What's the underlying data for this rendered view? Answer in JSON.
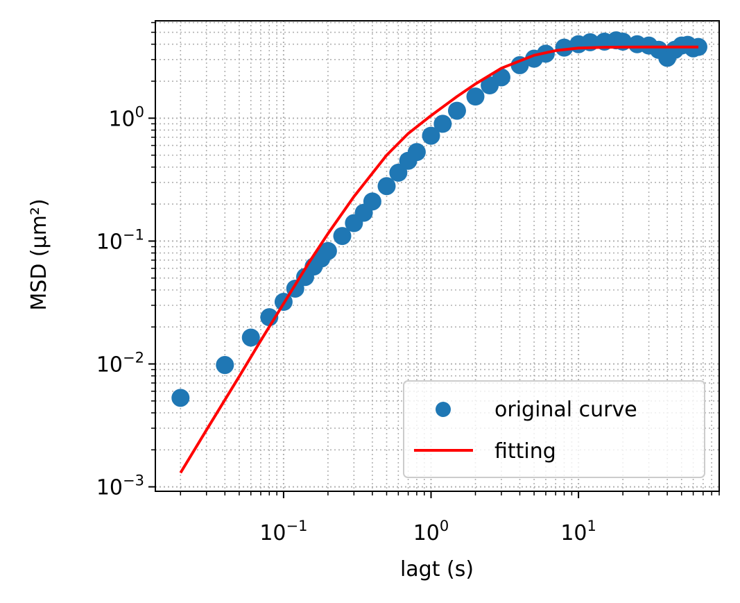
{
  "chart_data": {
    "type": "scatter",
    "xlabel": "lagt (s)",
    "ylabel": "MSD (μm²)",
    "xscale": "log",
    "yscale": "log",
    "xlim": [
      0.0135,
      90
    ],
    "ylim": [
      0.00092,
      6.2
    ],
    "grid": true,
    "grid_style": "dotted, major and minor",
    "legend_position": "bottom-right",
    "xticks": [
      {
        "value": 0.1,
        "base": "10",
        "exp": "−1"
      },
      {
        "value": 1,
        "base": "10",
        "exp": "0"
      },
      {
        "value": 10,
        "base": "10",
        "exp": "1"
      }
    ],
    "yticks": [
      {
        "value": 0.001,
        "base": "10",
        "exp": "−3"
      },
      {
        "value": 0.01,
        "base": "10",
        "exp": "−2"
      },
      {
        "value": 0.1,
        "base": "10",
        "exp": "−1"
      },
      {
        "value": 1,
        "base": "10",
        "exp": "0"
      }
    ],
    "series": [
      {
        "name": "original curve",
        "kind": "scatter",
        "color": "#1f77b4",
        "x": [
          0.02,
          0.04,
          0.06,
          0.08,
          0.1,
          0.12,
          0.14,
          0.16,
          0.18,
          0.2,
          0.25,
          0.3,
          0.35,
          0.4,
          0.5,
          0.6,
          0.7,
          0.8,
          1.0,
          1.2,
          1.5,
          2.0,
          2.5,
          3.0,
          4.0,
          5.0,
          6.0,
          8.0,
          10,
          12,
          15,
          18,
          20,
          25,
          30,
          35,
          40,
          45,
          50,
          55,
          60,
          65
        ],
        "y": [
          0.0053,
          0.0098,
          0.0164,
          0.024,
          0.032,
          0.041,
          0.051,
          0.062,
          0.072,
          0.083,
          0.11,
          0.14,
          0.17,
          0.21,
          0.28,
          0.36,
          0.45,
          0.53,
          0.72,
          0.9,
          1.15,
          1.5,
          1.85,
          2.15,
          2.7,
          3.05,
          3.35,
          3.75,
          4.0,
          4.15,
          4.2,
          4.3,
          4.2,
          4.0,
          3.9,
          3.6,
          3.1,
          3.6,
          3.9,
          3.95,
          3.7,
          3.8
        ]
      },
      {
        "name": "fitting",
        "kind": "line",
        "color": "#ff0000",
        "x": [
          0.02,
          0.03,
          0.05,
          0.07,
          0.1,
          0.15,
          0.2,
          0.3,
          0.5,
          0.7,
          1.0,
          1.5,
          2.0,
          3.0,
          5.0,
          7.0,
          10,
          15,
          20,
          30,
          50,
          65
        ],
        "y": [
          0.0013,
          0.0029,
          0.0079,
          0.0155,
          0.031,
          0.068,
          0.115,
          0.23,
          0.5,
          0.75,
          1.05,
          1.5,
          1.9,
          2.55,
          3.25,
          3.55,
          3.72,
          3.78,
          3.79,
          3.8,
          3.8,
          3.8
        ]
      }
    ]
  }
}
